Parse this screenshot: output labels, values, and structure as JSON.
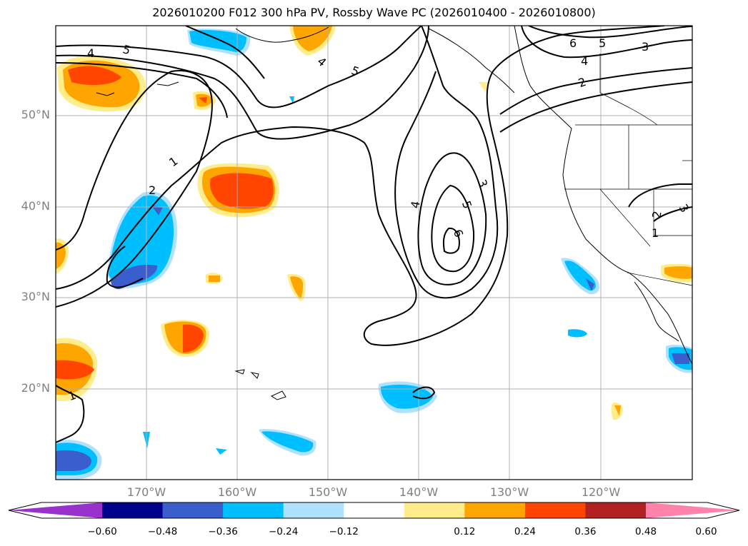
{
  "title": "2026010200 F012 300 hPa PV, Rossby Wave PC (2026010400 - 2026010800)",
  "lat_labels": [
    "50°N",
    "40°N",
    "30°N",
    "20°N"
  ],
  "lon_labels": [
    "170°W",
    "160°W",
    "150°W",
    "140°W",
    "130°W",
    "120°W"
  ],
  "colorbar": {
    "ticks": [
      "−0.60",
      "−0.48",
      "−0.36",
      "−0.24",
      "−0.12",
      "0.12",
      "0.24",
      "0.36",
      "0.48",
      "0.60"
    ],
    "colors": [
      "#9932cc",
      "#00008b",
      "#3a5fcd",
      "#00bfff",
      "#b0e2ff",
      "#ffffff",
      "#ffec8b",
      "#ffa500",
      "#ff4500",
      "#b22222",
      "#ff82ab"
    ]
  },
  "contour_labels": [
    "4",
    "5",
    "4",
    "5",
    "6",
    "5",
    "4",
    "3",
    "2",
    "1",
    "2",
    "3",
    "4",
    "5",
    "6",
    "1",
    "1",
    "2",
    "3"
  ],
  "contour_color": "#000000"
}
